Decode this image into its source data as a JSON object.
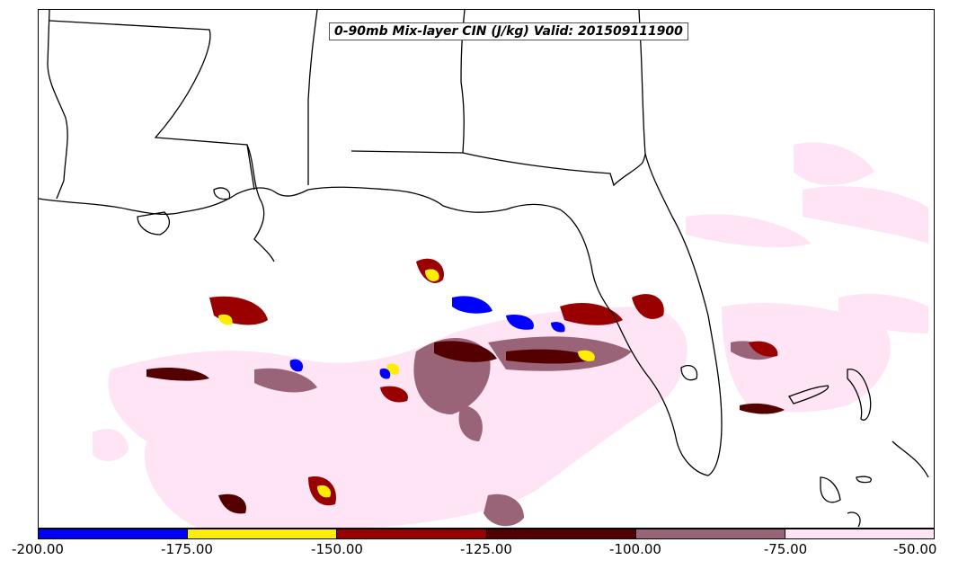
{
  "title": "0-90mb Mix-layer CIN (J/kg) Valid: 201509111900",
  "colorbar": {
    "colors": [
      "#0000ff",
      "#ffee00",
      "#990000",
      "#550000",
      "#9a6478",
      "#ffe4f6"
    ],
    "tick_labels": [
      "-200.00",
      "-175.00",
      "-150.00",
      "-125.00",
      "-100.00",
      "-75.00",
      "-50.00"
    ]
  },
  "map": {
    "land_color": "#ffffff",
    "border_color": "#000000"
  }
}
